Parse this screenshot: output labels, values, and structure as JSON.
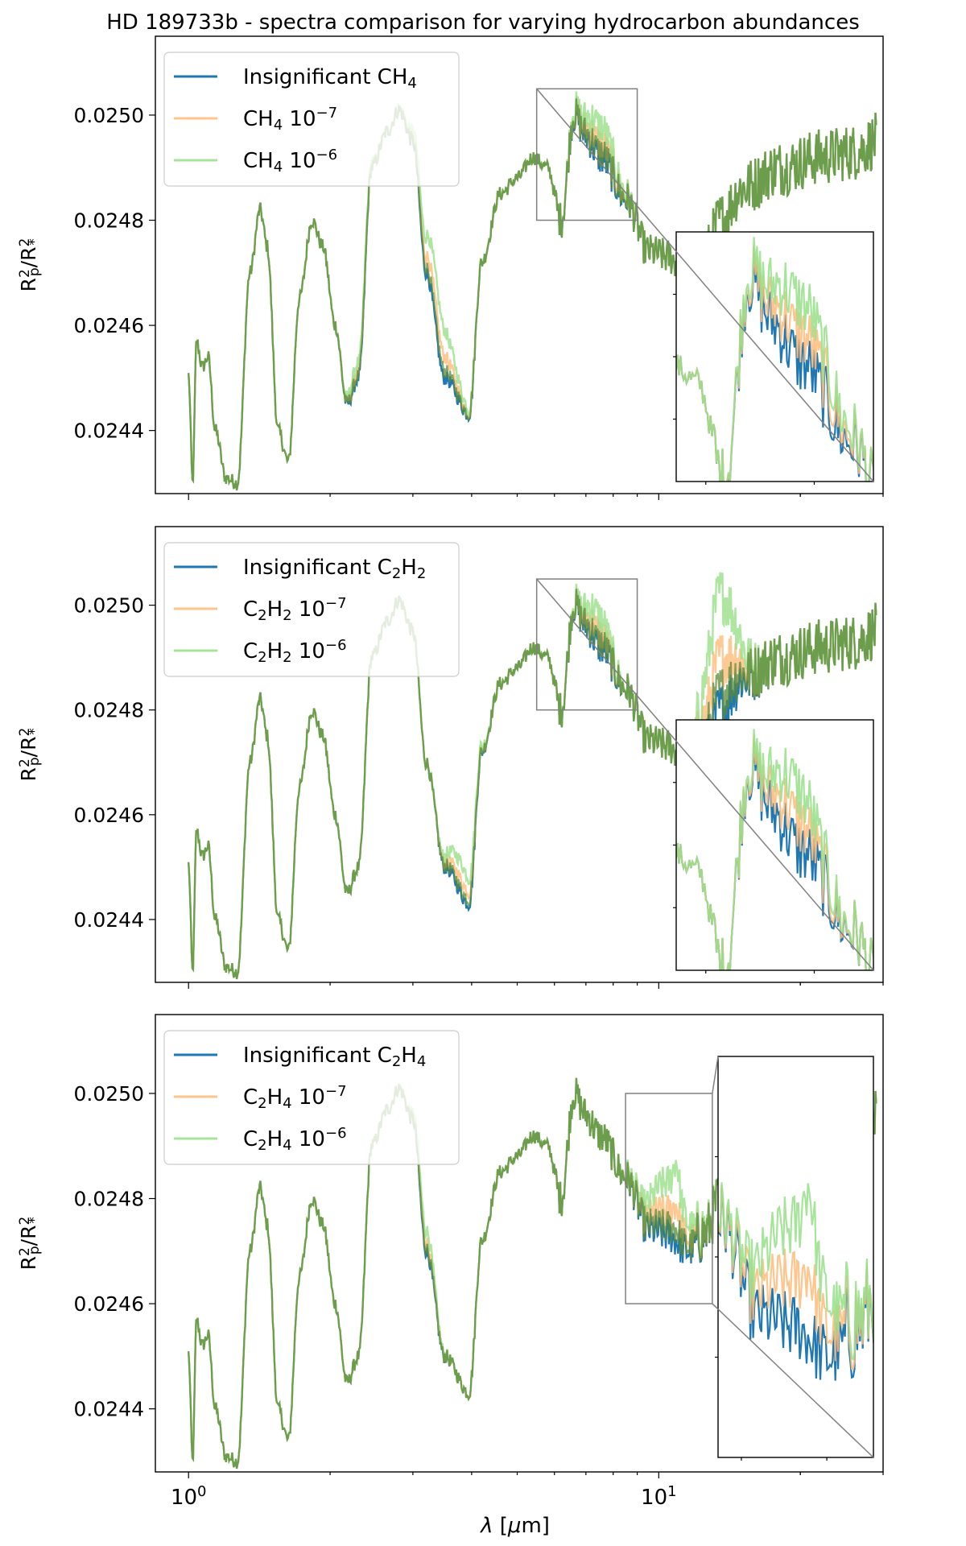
{
  "figure": {
    "title": "HD 189733b - spectra comparison for varying hydrocarbon abundances",
    "xlabel": "λ [μm]",
    "xticks": [
      {
        "base": "10",
        "exp": "0",
        "value": 1
      },
      {
        "base": "10",
        "exp": "1",
        "value": 10
      }
    ]
  },
  "colors": {
    "insignificant": "#1f77b4",
    "ab_1e7": "#ffbb78",
    "ab_1e6": "#98df8a",
    "overlap": "#5a8a3a"
  },
  "chart_data": [
    {
      "type": "line",
      "species": "CH",
      "species_sub": "4",
      "ylabel": "R_p^2/R_*^2",
      "xscale": "log",
      "xlim": [
        0.85,
        30
      ],
      "ylim": [
        0.02428,
        0.02515
      ],
      "yticks": [
        "0.0244",
        "0.0246",
        "0.0248",
        "0.0250"
      ],
      "legend_location": "upper-left",
      "series": [
        {
          "name": "Insignificant CH4",
          "label_main": "Insignificant CH",
          "label_sub": "4",
          "label_exp": "",
          "color": "#1f77b4"
        },
        {
          "name": "CH4 10^-7",
          "label_main": "CH",
          "label_sub": "4",
          "label_tail": " 10",
          "label_exp": "−7",
          "color": "#ffbb78"
        },
        {
          "name": "CH4 10^-6",
          "label_main": "CH",
          "label_sub": "4",
          "label_tail": " 10",
          "label_exp": "−6",
          "color": "#98df8a"
        }
      ],
      "inset_region": {
        "x": [
          5.5,
          9.0
        ],
        "y": [
          0.0248,
          0.02505
        ]
      }
    },
    {
      "type": "line",
      "species": "C",
      "species_sub": "2",
      "ylabel": "R_p^2/R_*^2",
      "xscale": "log",
      "xlim": [
        0.85,
        30
      ],
      "ylim": [
        0.02428,
        0.02515
      ],
      "yticks": [
        "0.0244",
        "0.0246",
        "0.0248",
        "0.0250"
      ],
      "legend_location": "upper-left",
      "series": [
        {
          "name": "Insignificant C2H2",
          "color": "#1f77b4"
        },
        {
          "name": "C2H2 10^-7",
          "color": "#ffbb78"
        },
        {
          "name": "C2H2 10^-6",
          "color": "#98df8a"
        }
      ],
      "inset_region": {
        "x": [
          5.5,
          9.0
        ],
        "y": [
          0.0248,
          0.02505
        ]
      }
    },
    {
      "type": "line",
      "species": "C",
      "species_sub": "2",
      "ylabel": "R_p^2/R_*^2",
      "xscale": "log",
      "xlim": [
        0.85,
        30
      ],
      "ylim": [
        0.02428,
        0.02515
      ],
      "yticks": [
        "0.0244",
        "0.0246",
        "0.0248",
        "0.0250"
      ],
      "legend_location": "upper-left",
      "series": [
        {
          "name": "Insignificant C2H4",
          "color": "#1f77b4"
        },
        {
          "name": "C2H4 10^-7",
          "color": "#ffbb78"
        },
        {
          "name": "C2H4 10^-6",
          "color": "#98df8a"
        }
      ],
      "inset_region": {
        "x": [
          8.5,
          13.0
        ],
        "y": [
          0.0246,
          0.025
        ]
      }
    }
  ],
  "legends": [
    [
      {
        "pre": "Insignificant CH",
        "sub": "4",
        "post": "",
        "exp": ""
      },
      {
        "pre": "CH",
        "sub": "4",
        "post": " 10",
        "exp": "−7"
      },
      {
        "pre": "CH",
        "sub": "4",
        "post": " 10",
        "exp": "−6"
      }
    ],
    [
      {
        "pre": "Insignificant C",
        "sub": "2",
        "mid": "H",
        "sub2": "2",
        "post": "",
        "exp": ""
      },
      {
        "pre": "C",
        "sub": "2",
        "mid": "H",
        "sub2": "2",
        "post": " 10",
        "exp": "−7"
      },
      {
        "pre": "C",
        "sub": "2",
        "mid": "H",
        "sub2": "2",
        "post": " 10",
        "exp": "−6"
      }
    ],
    [
      {
        "pre": "Insignificant C",
        "sub": "2",
        "mid": "H",
        "sub2": "4",
        "post": "",
        "exp": ""
      },
      {
        "pre": "C",
        "sub": "2",
        "mid": "H",
        "sub2": "4",
        "post": " 10",
        "exp": "−7"
      },
      {
        "pre": "C",
        "sub": "2",
        "mid": "H",
        "sub2": "4",
        "post": " 10",
        "exp": "−6"
      }
    ]
  ],
  "ylabel_parts": {
    "r": "R",
    "p": "p",
    "two": "2",
    "slash": "/R",
    "star": "*"
  }
}
